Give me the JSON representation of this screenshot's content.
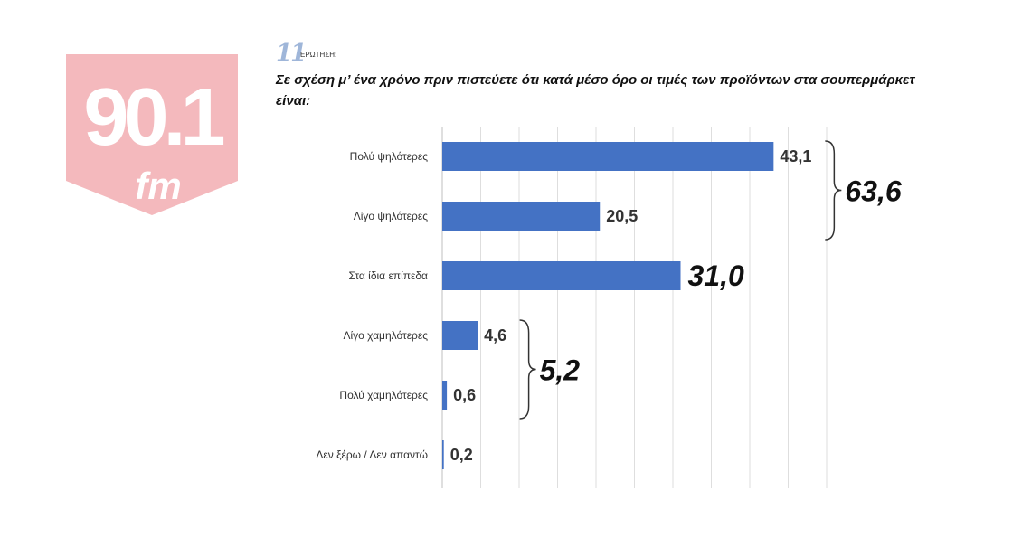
{
  "logo": {
    "number": "90.1",
    "suffix": "fm",
    "color": "#f4b9bd"
  },
  "question": {
    "number": "11",
    "label": "ΕΡΩΤΗΣΗ:",
    "text": "Σε σχέση μ’ ένα χρόνο πριν πιστεύετε ότι κατά μέσο όρο οι τιμές των προϊόντων στα σουπερμάρκετ είναι:"
  },
  "chart_data": {
    "type": "bar",
    "orientation": "horizontal",
    "categories": [
      "Πολύ ψηλότερες",
      "Λίγο ψηλότερες",
      "Στα ίδια επίπεδα",
      "Λίγο χαμηλότερες",
      "Πολύ χαμηλότερες",
      "Δεν ξέρω / Δεν απαντώ"
    ],
    "values": [
      43.1,
      20.5,
      31.0,
      4.6,
      0.6,
      0.2
    ],
    "value_labels": [
      "43,1",
      "20,5",
      "31,0",
      "4,6",
      "0,6",
      "0,2"
    ],
    "xlim": [
      0,
      50
    ],
    "grid": true,
    "bar_color": "#4472c4",
    "groups": [
      {
        "label": "63,6",
        "members": [
          0,
          1
        ]
      },
      {
        "label": "5,2",
        "members": [
          3,
          4
        ]
      }
    ],
    "highlight_value_index": 2
  }
}
